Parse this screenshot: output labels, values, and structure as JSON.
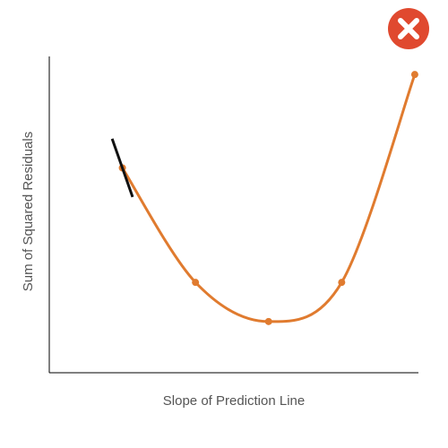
{
  "chart_data": {
    "type": "line",
    "title": "",
    "xlabel": "Slope of Prediction Line",
    "ylabel": "Sum of Squared Residuals",
    "x": [
      1,
      2,
      3,
      4,
      5
    ],
    "y": [
      6.1,
      2.3,
      1.0,
      2.3,
      9.2
    ],
    "xlim": [
      0,
      5.05
    ],
    "ylim": [
      -0.7,
      9.8
    ],
    "grid": false,
    "series_color": "#e07b2f",
    "tangent": {
      "at_x": 1,
      "slope": -6.9,
      "color": "#111111"
    }
  },
  "close_button": {
    "icon": "close-icon",
    "color": "#e0492f"
  }
}
